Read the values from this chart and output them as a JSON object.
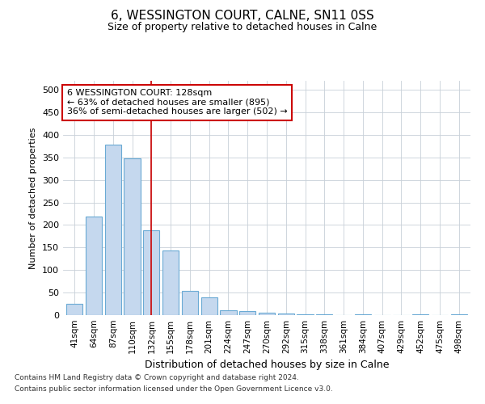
{
  "title": "6, WESSINGTON COURT, CALNE, SN11 0SS",
  "subtitle": "Size of property relative to detached houses in Calne",
  "xlabel": "Distribution of detached houses by size in Calne",
  "ylabel": "Number of detached properties",
  "footer_line1": "Contains HM Land Registry data © Crown copyright and database right 2024.",
  "footer_line2": "Contains public sector information licensed under the Open Government Licence v3.0.",
  "categories": [
    "41sqm",
    "64sqm",
    "87sqm",
    "110sqm",
    "132sqm",
    "155sqm",
    "178sqm",
    "201sqm",
    "224sqm",
    "247sqm",
    "270sqm",
    "292sqm",
    "315sqm",
    "338sqm",
    "361sqm",
    "384sqm",
    "407sqm",
    "429sqm",
    "452sqm",
    "475sqm",
    "498sqm"
  ],
  "values": [
    25,
    218,
    378,
    347,
    188,
    143,
    54,
    40,
    11,
    9,
    6,
    3,
    2,
    1,
    0,
    2,
    0,
    0,
    2,
    0,
    2
  ],
  "bar_color": "#c5d8ee",
  "bar_edge_color": "#6aaad4",
  "grid_color": "#c8d0d8",
  "background_color": "#ffffff",
  "annotation_text": "6 WESSINGTON COURT: 128sqm\n← 63% of detached houses are smaller (895)\n36% of semi-detached houses are larger (502) →",
  "annotation_box_edge": "#cc0000",
  "red_line_x": 4.0,
  "ylim": [
    0,
    520
  ],
  "yticks": [
    0,
    50,
    100,
    150,
    200,
    250,
    300,
    350,
    400,
    450,
    500
  ],
  "title_fontsize": 11,
  "subtitle_fontsize": 9,
  "ylabel_fontsize": 8,
  "xlabel_fontsize": 9
}
